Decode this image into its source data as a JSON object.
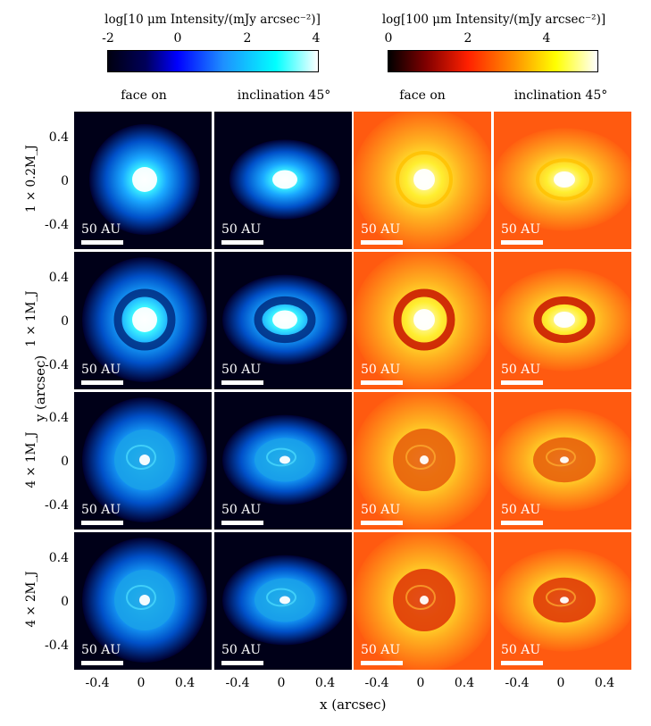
{
  "colorbars": [
    {
      "title": "log[10 μm Intensity/(mJy arcsec⁻²)]",
      "ticks": [
        "-2",
        "0",
        "2",
        "4"
      ],
      "colors": [
        "#000010",
        "#00005a",
        "#0000ff",
        "#1e90ff",
        "#00ffff",
        "#ffffff"
      ]
    },
    {
      "title": "log[100 μm Intensity/(mJy arcsec⁻²)]",
      "ticks": [
        "0",
        "2",
        "4"
      ],
      "colors": [
        "#000000",
        "#800000",
        "#ff2000",
        "#ff9000",
        "#ffff00",
        "#ffffff"
      ]
    }
  ],
  "column_headers": [
    "face on",
    "inclination 45°",
    "face on",
    "inclination 45°"
  ],
  "row_labels": [
    "1 × 0.2M_J",
    "1 × 1M_J",
    "4 × 1M_J",
    "4 × 2M_J"
  ],
  "scale_bar_label": "50 AU",
  "y_axis": {
    "label": "y (arcsec)",
    "ticks": [
      "0.4",
      "0",
      "-0.4"
    ]
  },
  "x_axis": {
    "label": "x (arcsec)",
    "ticks": [
      "-0.4",
      "0",
      "0.4"
    ]
  }
}
